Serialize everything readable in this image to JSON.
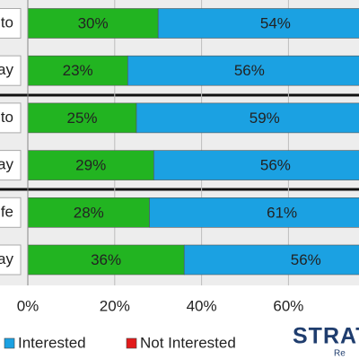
{
  "chart_data": {
    "type": "stacked-bar-horizontal",
    "categories": [
      "to",
      "ay",
      "to",
      "ay",
      "fe",
      "ay"
    ],
    "series": [
      {
        "color": "#22b421",
        "values": [
          30,
          23,
          25,
          29,
          28,
          36
        ],
        "value_labels": [
          "30%",
          "23%",
          "25%",
          "29%",
          "28%",
          "36%"
        ]
      },
      {
        "name": "Interested",
        "color": "#1ba1e2",
        "values": [
          54,
          56,
          59,
          56,
          61,
          56
        ],
        "value_labels": [
          "54%",
          "56%",
          "59%",
          "56%",
          "61%",
          "56%"
        ]
      },
      {
        "name": "Not Interested",
        "color": "#e21a1a",
        "values": [
          null,
          null,
          null,
          null,
          null,
          null
        ]
      }
    ],
    "xlim": [
      0,
      100
    ],
    "xticks": [
      {
        "value": 0,
        "label": "0%"
      },
      {
        "value": 20,
        "label": "20%"
      },
      {
        "value": 40,
        "label": "40%"
      },
      {
        "value": 60,
        "label": "60%"
      }
    ],
    "grid": true
  },
  "logo": {
    "text": "STRATE",
    "sub": "Re"
  }
}
